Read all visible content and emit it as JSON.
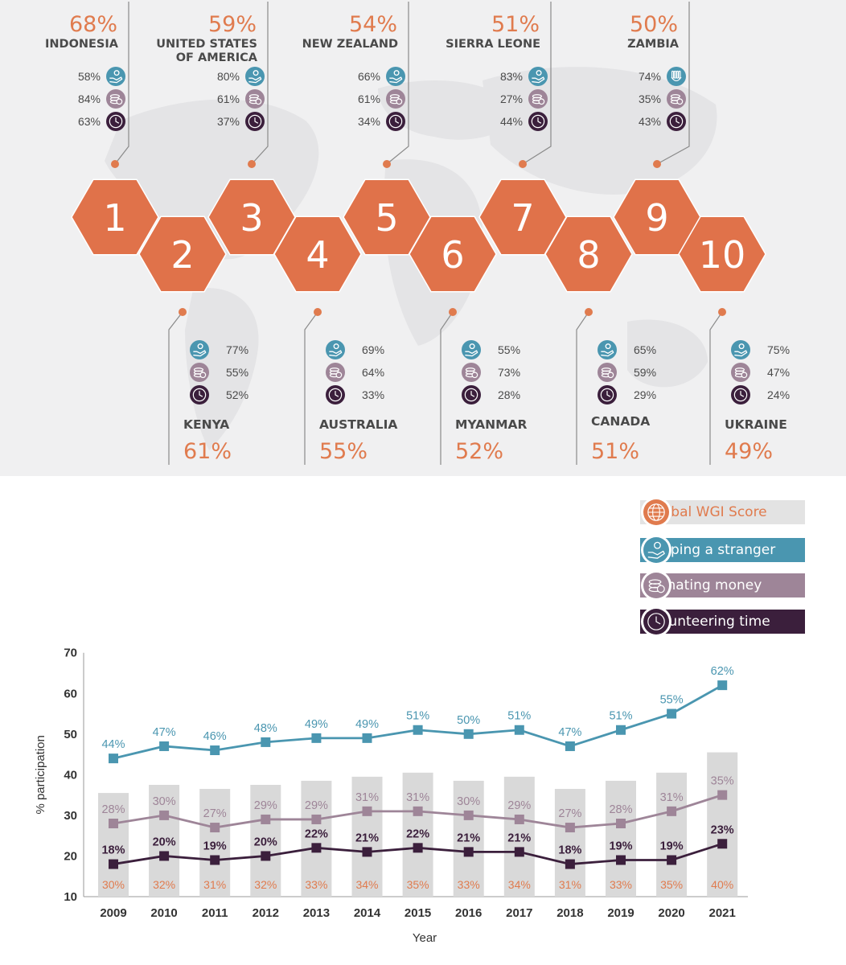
{
  "colors": {
    "orange": "#e07b4e",
    "hex_fill": "#e0724a",
    "teal": "#4a96b0",
    "mauve": "#9e8598",
    "plum": "#3b1f3c",
    "text_dark": "#4a4a4a",
    "bar_gray": "#d9d9d9",
    "map_bg": "#f0f0f1"
  },
  "ranking": [
    {
      "rank": "1",
      "country": "INDONESIA",
      "score": "68%",
      "helping": "58%",
      "donating": "84%",
      "volunteering": "63%",
      "helping_icon": "helping-hand-icon"
    },
    {
      "rank": "2",
      "country": "KENYA",
      "score": "61%",
      "helping": "77%",
      "donating": "55%",
      "volunteering": "52%",
      "helping_icon": "helping-hand-icon"
    },
    {
      "rank": "3",
      "country": "UNITED STATES OF AMERICA",
      "country_lines": [
        "UNITED STATES",
        "OF AMERICA"
      ],
      "score": "59%",
      "helping": "80%",
      "donating": "61%",
      "volunteering": "37%",
      "helping_icon": "helping-hand-icon"
    },
    {
      "rank": "4",
      "country": "AUSTRALIA",
      "score": "55%",
      "helping": "69%",
      "donating": "64%",
      "volunteering": "33%",
      "helping_icon": "helping-hand-icon"
    },
    {
      "rank": "5",
      "country": "NEW ZEALAND",
      "score": "54%",
      "helping": "66%",
      "donating": "61%",
      "volunteering": "34%",
      "helping_icon": "helping-hand-icon"
    },
    {
      "rank": "6",
      "country": "MYANMAR",
      "score": "52%",
      "helping": "55%",
      "donating": "73%",
      "volunteering": "28%",
      "helping_icon": "helping-hand-icon"
    },
    {
      "rank": "7",
      "country": "SIERRA LEONE",
      "score": "51%",
      "helping": "83%",
      "donating": "27%",
      "volunteering": "44%",
      "helping_icon": "helping-hand-icon"
    },
    {
      "rank": "8",
      "country": "CANADA",
      "score": "51%",
      "helping": "65%",
      "donating": "59%",
      "volunteering": "29%",
      "helping_icon": "helping-hand-icon"
    },
    {
      "rank": "9",
      "country": "ZAMBIA",
      "score": "50%",
      "helping": "74%",
      "donating": "35%",
      "volunteering": "43%",
      "helping_icon": "raised-hand-icon"
    },
    {
      "rank": "10",
      "country": "UKRAINE",
      "score": "49%",
      "helping": "75%",
      "donating": "47%",
      "volunteering": "24%",
      "helping_icon": "helping-hand-icon"
    }
  ],
  "legend": [
    {
      "label": "Global WGI Score",
      "icon": "globe-icon",
      "color": "#e07b4e"
    },
    {
      "label": "Helping a stranger",
      "icon": "helping-hand-icon",
      "color": "#4a96b0"
    },
    {
      "label": "Donating money",
      "icon": "coins-icon",
      "color": "#9e8598"
    },
    {
      "label": "Volunteering time",
      "icon": "clock-icon",
      "color": "#3b1f3c"
    }
  ],
  "chart_data": {
    "type": "line",
    "xlabel": "Year",
    "ylabel": "% participation",
    "ylim": [
      10,
      70
    ],
    "yticks": [
      10,
      20,
      30,
      40,
      50,
      60,
      70
    ],
    "categories": [
      "2009",
      "2010",
      "2011",
      "2012",
      "2013",
      "2014",
      "2015",
      "2016",
      "2017",
      "2018",
      "2019",
      "2020",
      "2021"
    ],
    "bars": {
      "name": "Global WGI Score",
      "color": "#e07b4e",
      "values": [
        30,
        32,
        31,
        32,
        33,
        34,
        35,
        33,
        34,
        31,
        33,
        35,
        40
      ]
    },
    "series": [
      {
        "name": "Helping a stranger",
        "color": "#4a96b0",
        "values": [
          44,
          47,
          46,
          48,
          49,
          49,
          51,
          50,
          51,
          47,
          51,
          55,
          62
        ]
      },
      {
        "name": "Donating money",
        "color": "#9e8598",
        "values": [
          28,
          30,
          27,
          29,
          29,
          31,
          31,
          30,
          29,
          27,
          28,
          31,
          35
        ]
      },
      {
        "name": "Volunteering time",
        "color": "#3b1f3c",
        "values": [
          18,
          20,
          19,
          20,
          22,
          21,
          22,
          21,
          21,
          18,
          19,
          19,
          23
        ]
      }
    ],
    "grid": false,
    "legend_position": "top-right"
  }
}
